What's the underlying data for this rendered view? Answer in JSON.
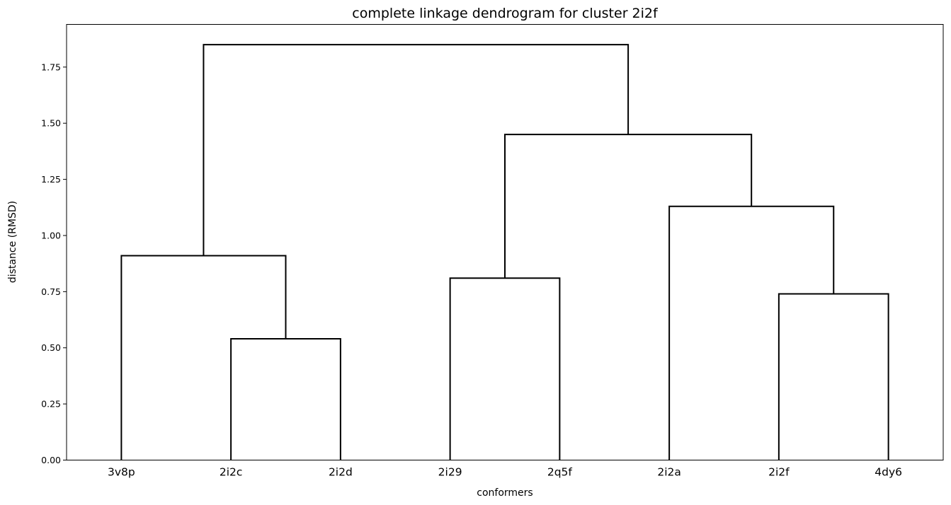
{
  "chart_data": {
    "type": "dendrogram",
    "title": "complete linkage dendrogram for cluster 2i2f",
    "xlabel": "conformers",
    "ylabel": "distance (RMSD)",
    "leaves": [
      "3v8p",
      "2i2c",
      "2i2d",
      "2i29",
      "2q5f",
      "2i2a",
      "2i2f",
      "4dy6"
    ],
    "ylim": [
      0,
      1.94
    ],
    "yticks": [
      0.0,
      0.25,
      0.5,
      0.75,
      1.0,
      1.25,
      1.5,
      1.75
    ],
    "ytick_labels": [
      "0.00",
      "0.25",
      "0.50",
      "0.75",
      "1.00",
      "1.25",
      "1.50",
      "1.75"
    ],
    "merges": [
      {
        "left": "2i2c",
        "right": "2i2d",
        "height": 0.54
      },
      {
        "left": "2i2f",
        "right": "4dy6",
        "height": 0.74
      },
      {
        "left": "2i29",
        "right": "2q5f",
        "height": 0.81
      },
      {
        "left": "3v8p",
        "right": "2i2c+2i2d",
        "height": 0.91
      },
      {
        "left": "2i2a",
        "right": "2i2f+4dy6",
        "height": 1.13
      },
      {
        "left": "2i29+2q5f",
        "right": "2i2a+2i2f+4dy6",
        "height": 1.45
      },
      {
        "left": "3v8p+2i2c+2i2d",
        "right": "2i29+2q5f+2i2a+2i2f+4dy6",
        "height": 1.85
      }
    ],
    "grid": false,
    "line_color": "#000000"
  }
}
